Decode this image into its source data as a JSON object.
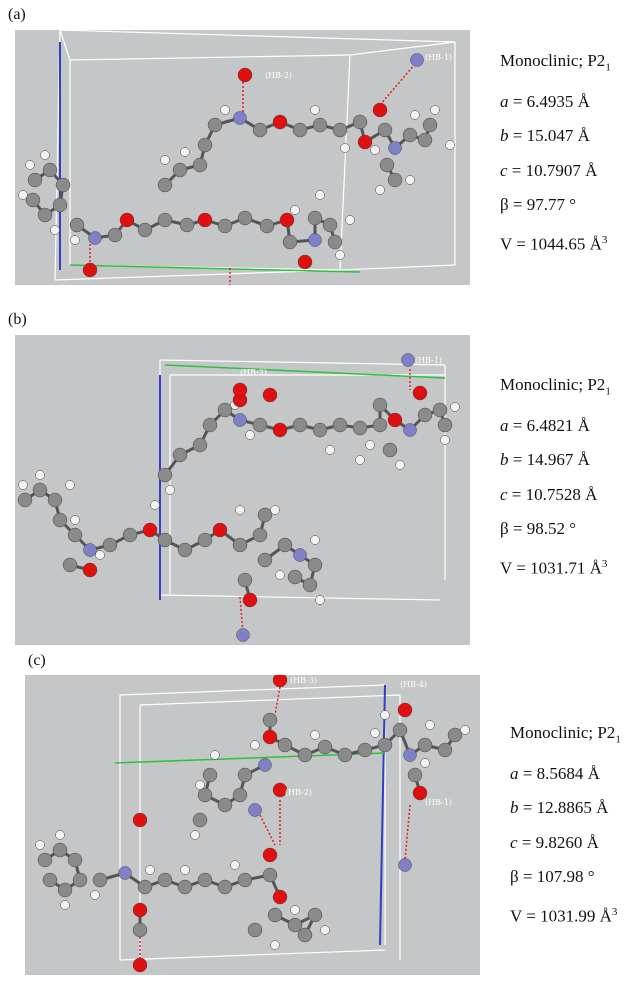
{
  "panels": [
    {
      "label": "(a)",
      "hb_labels": [
        "(HB-2)",
        "(HB-1)"
      ],
      "crystal": {
        "system": "Monoclinic; P2",
        "system_sub": "1",
        "params": [
          {
            "symbol": "a",
            "text": " = 6.4935 Å"
          },
          {
            "symbol": "b",
            "text": " = 15.047 Å"
          },
          {
            "symbol": "c",
            "text": " = 10.7907 Å"
          },
          {
            "symbol": "β",
            "text": " = 97.77 °"
          },
          {
            "symbol": "V",
            "text": " = 1044.65 Å",
            "sup": "3"
          }
        ]
      }
    },
    {
      "label": "(b)",
      "hb_labels": [
        "(HB-2)",
        "(HB-1)"
      ],
      "crystal": {
        "system": "Monoclinic; P2",
        "system_sub": "1",
        "params": [
          {
            "symbol": "a",
            "text": " = 6.4821 Å"
          },
          {
            "symbol": "b",
            "text": " = 14.967 Å"
          },
          {
            "symbol": "c",
            "text": " = 10.7528 Å"
          },
          {
            "symbol": "β",
            "text": " = 98.52 °"
          },
          {
            "symbol": "V",
            "text": " = 1031.71 Å",
            "sup": "3"
          }
        ]
      }
    },
    {
      "label": "(c)",
      "hb_labels": [
        "(HB-3)",
        "(HB-4)",
        "(HB-2)",
        "(HB-1)"
      ],
      "crystal": {
        "system": "Monoclinic; P2",
        "system_sub": "1",
        "params": [
          {
            "symbol": "a",
            "text": " = 8.5684 Å"
          },
          {
            "symbol": "b",
            "text": " = 12.8865 Å"
          },
          {
            "symbol": "c",
            "text": " = 9.8260 Å"
          },
          {
            "symbol": "β",
            "text": " = 107.98 °"
          },
          {
            "symbol": "V",
            "text": " = 1031.99 Å",
            "sup": "3"
          }
        ]
      }
    }
  ]
}
